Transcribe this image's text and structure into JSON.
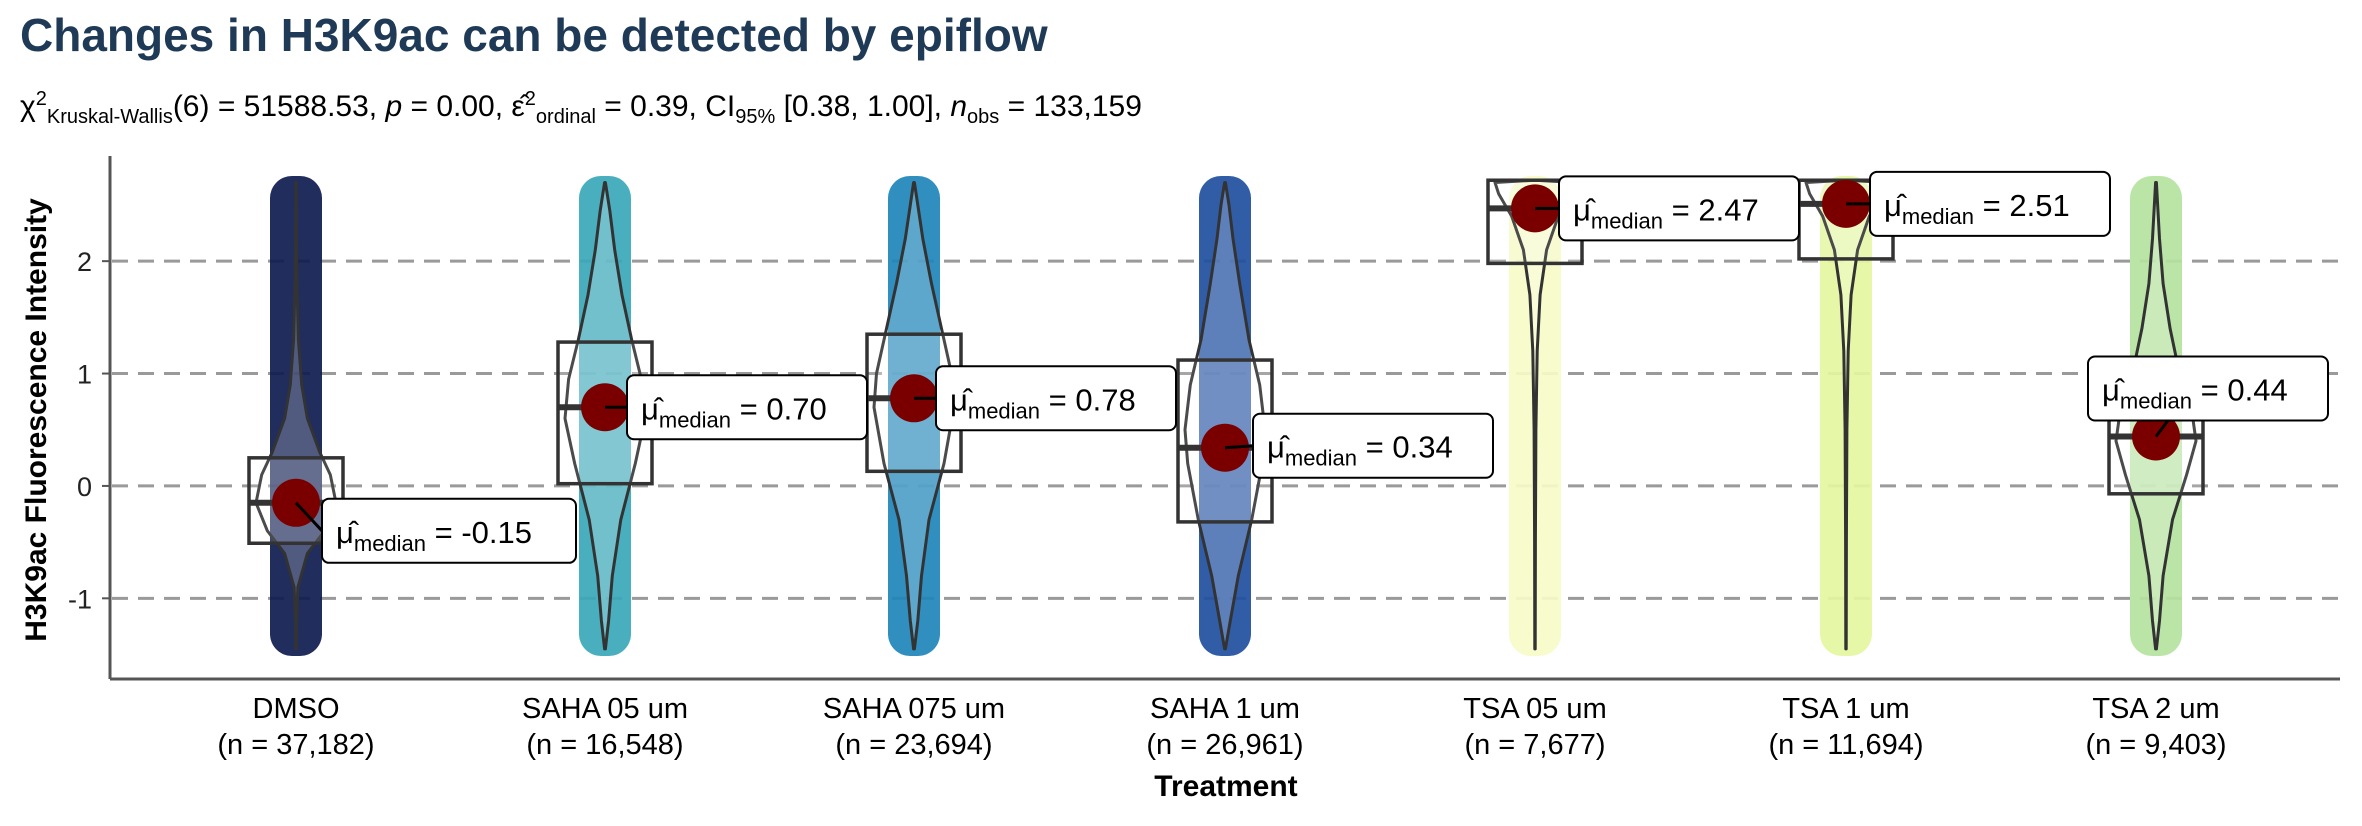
{
  "title": "Changes in H3K9ac can be detected by epiflow",
  "subtitle": {
    "chi_sym": "χ",
    "chi_sup": "2",
    "chi_sub": "Kruskal-Wallis",
    "part1": "(6) = 51588.53, ",
    "p_label": "p",
    "part2": " = 0.00, ",
    "eps_sym": "ε̂",
    "eps_sup": "2",
    "eps_sub": "ordinal",
    "part3": " = 0.39, CI",
    "ci_sub": "95%",
    "part4": " [0.38, 1.00], ",
    "n_label": "n",
    "n_sub": "obs",
    "part5": " = 133,159"
  },
  "colors": {
    "title": "#1f3a56",
    "median_point": "#7a0000",
    "grid": "#9a9a9a"
  },
  "chart_data": {
    "type": "boxplot-violin-jitter",
    "xlabel": "Treatment",
    "ylabel": "H3K9ac Fluorescence Intensity",
    "ylim": [
      -1.7,
      2.9
    ],
    "y_ticks": [
      -1,
      0,
      1,
      2
    ],
    "grid": "horizontal dashed at y ticks",
    "median_label_prefix": "μ̂",
    "median_label_sub": "median",
    "groups": [
      {
        "name": "DMSO",
        "n_label": "(n = 37,182)",
        "median": -0.15,
        "median_label": "= -0.15",
        "q1": -0.51,
        "q3": 0.25,
        "min": -1.45,
        "max": 2.7,
        "color": "#0d1b4f",
        "violin": [
          [
            -1.45,
            0.003
          ],
          [
            -1.2,
            0.006
          ],
          [
            -0.9,
            0.02
          ],
          [
            -0.6,
            0.12
          ],
          [
            -0.4,
            0.3
          ],
          [
            -0.15,
            0.42
          ],
          [
            0.1,
            0.36
          ],
          [
            0.3,
            0.25
          ],
          [
            0.6,
            0.12
          ],
          [
            0.9,
            0.06
          ],
          [
            1.3,
            0.025
          ],
          [
            1.8,
            0.01
          ],
          [
            2.3,
            0.004
          ],
          [
            2.7,
            0.002
          ]
        ]
      },
      {
        "name": "SAHA 05 um",
        "n_label": "(n = 16,548)",
        "median": 0.7,
        "median_label": "= 0.70",
        "q1": 0.02,
        "q3": 1.28,
        "min": -1.45,
        "max": 2.7,
        "color": "#3aa8b8",
        "violin": [
          [
            -1.45,
            0.003
          ],
          [
            -1.2,
            0.03
          ],
          [
            -0.8,
            0.06
          ],
          [
            -0.3,
            0.13
          ],
          [
            0.2,
            0.25
          ],
          [
            0.6,
            0.33
          ],
          [
            0.95,
            0.3
          ],
          [
            1.3,
            0.22
          ],
          [
            1.7,
            0.14
          ],
          [
            2.1,
            0.08
          ],
          [
            2.45,
            0.04
          ],
          [
            2.7,
            0.003
          ]
        ]
      },
      {
        "name": "SAHA 075 um",
        "n_label": "(n = 23,694)",
        "median": 0.78,
        "median_label": "= 0.78",
        "q1": 0.13,
        "q3": 1.35,
        "min": -1.45,
        "max": 2.7,
        "color": "#1e86b8",
        "violin": [
          [
            -1.45,
            0.003
          ],
          [
            -1.2,
            0.03
          ],
          [
            -0.8,
            0.06
          ],
          [
            -0.3,
            0.12
          ],
          [
            0.2,
            0.24
          ],
          [
            0.7,
            0.32
          ],
          [
            1.0,
            0.3
          ],
          [
            1.4,
            0.22
          ],
          [
            1.8,
            0.14
          ],
          [
            2.2,
            0.07
          ],
          [
            2.5,
            0.03
          ],
          [
            2.7,
            0.003
          ]
        ]
      },
      {
        "name": "SAHA 1 um",
        "n_label": "(n = 26,961)",
        "median": 0.34,
        "median_label": "= 0.34",
        "q1": -0.32,
        "q3": 1.12,
        "min": -1.45,
        "max": 2.7,
        "color": "#1f4fa0",
        "violin": [
          [
            -1.45,
            0.003
          ],
          [
            -1.2,
            0.04
          ],
          [
            -0.8,
            0.1
          ],
          [
            -0.3,
            0.2
          ],
          [
            0.2,
            0.28
          ],
          [
            0.5,
            0.3
          ],
          [
            0.9,
            0.26
          ],
          [
            1.3,
            0.18
          ],
          [
            1.8,
            0.11
          ],
          [
            2.2,
            0.06
          ],
          [
            2.5,
            0.03
          ],
          [
            2.7,
            0.003
          ]
        ]
      },
      {
        "name": "TSA 05 um",
        "n_label": "(n = 7,677)",
        "median": 2.47,
        "median_label": "= 2.47",
        "q1": 1.98,
        "q3": 2.72,
        "min": -1.45,
        "max": 2.72,
        "color": "#f7fbc8",
        "violin": [
          [
            -1.45,
            0.003
          ],
          [
            -0.5,
            0.006
          ],
          [
            0.5,
            0.012
          ],
          [
            1.2,
            0.03
          ],
          [
            1.7,
            0.07
          ],
          [
            2.1,
            0.16
          ],
          [
            2.4,
            0.32
          ],
          [
            2.6,
            0.5
          ],
          [
            2.7,
            0.55
          ],
          [
            2.72,
            0.003
          ]
        ]
      },
      {
        "name": "TSA 1 um",
        "n_label": "(n = 11,694)",
        "median": 2.51,
        "median_label": "= 2.51",
        "q1": 2.02,
        "q3": 2.72,
        "min": -1.45,
        "max": 2.72,
        "color": "#e4f7a0",
        "violin": [
          [
            -1.45,
            0.003
          ],
          [
            -0.5,
            0.006
          ],
          [
            0.5,
            0.012
          ],
          [
            1.2,
            0.03
          ],
          [
            1.7,
            0.07
          ],
          [
            2.1,
            0.16
          ],
          [
            2.4,
            0.32
          ],
          [
            2.6,
            0.5
          ],
          [
            2.7,
            0.55
          ],
          [
            2.72,
            0.003
          ]
        ]
      },
      {
        "name": "TSA 2 um",
        "n_label": "(n = 9,403)",
        "median": 0.44,
        "median_label": "= 0.44",
        "q1": -0.07,
        "q3": 0.72,
        "min": -1.45,
        "max": 2.7,
        "color": "#b5e3a0",
        "violin": [
          [
            -1.45,
            0.003
          ],
          [
            -1.2,
            0.03
          ],
          [
            -0.8,
            0.06
          ],
          [
            -0.3,
            0.14
          ],
          [
            0.1,
            0.26
          ],
          [
            0.4,
            0.34
          ],
          [
            0.7,
            0.3
          ],
          [
            1.0,
            0.2
          ],
          [
            1.4,
            0.12
          ],
          [
            1.8,
            0.06
          ],
          [
            2.2,
            0.03
          ],
          [
            2.7,
            0.003
          ]
        ]
      }
    ]
  }
}
